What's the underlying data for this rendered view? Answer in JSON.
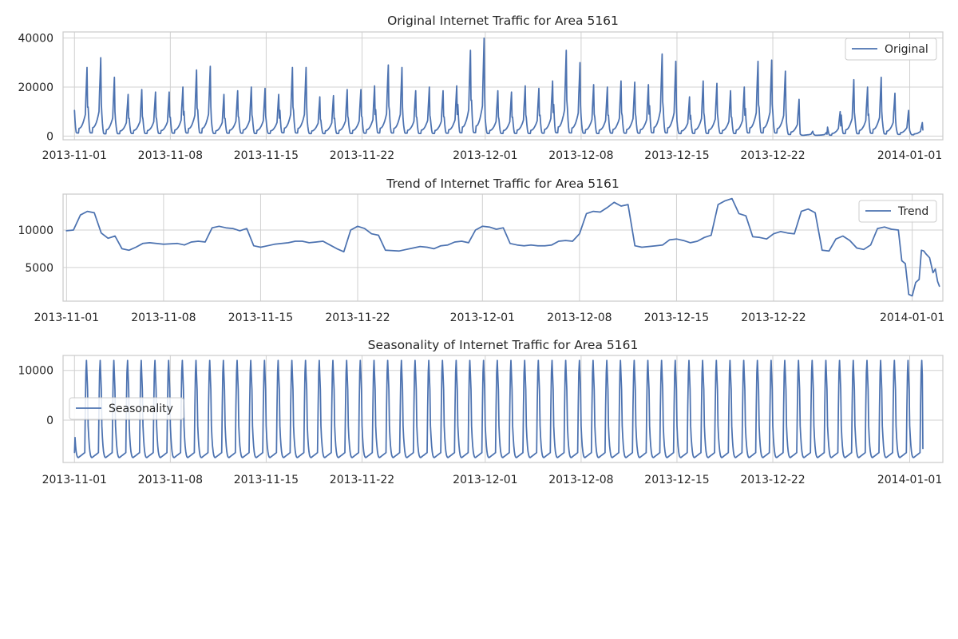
{
  "chart_data": [
    {
      "type": "line",
      "title": "Original Internet Traffic for Area 5161",
      "xlabel": "",
      "ylabel": "",
      "x_start": "2013-11-01",
      "x_end": "2014-01-01",
      "xlim": [
        "2013-10-31",
        "2014-01-02"
      ],
      "ylim": [
        -1500,
        42500
      ],
      "yticks": [
        0,
        20000,
        40000
      ],
      "ytick_labels": [
        "0",
        "20000",
        "40000"
      ],
      "xticks": [
        "2013-11-01",
        "2013-11-08",
        "2013-11-15",
        "2013-11-22",
        "2013-12-01",
        "2013-12-08",
        "2013-12-15",
        "2013-12-22",
        "2014-01-01"
      ],
      "grid": true,
      "legend_position": "upper right",
      "series": [
        {
          "name": "Original",
          "sampling": "hourly",
          "daily_peaks": [
            28000,
            32000,
            24000,
            17000,
            19000,
            18000,
            18000,
            20000,
            27000,
            28500,
            17000,
            18500,
            20000,
            19500,
            17000,
            28000,
            28000,
            16000,
            16500,
            19000,
            19000,
            20500,
            29000,
            28000,
            18500,
            20000,
            18500,
            20500,
            35000,
            40000,
            18500,
            18000,
            20500,
            19500,
            22500,
            35000,
            30000,
            21000,
            20000,
            22500,
            22000,
            21000,
            33500,
            30500,
            16000,
            22500,
            21500,
            18500,
            20000,
            30500,
            31000,
            26500,
            15000,
            2000,
            1500,
            10000,
            23000,
            20000,
            24000,
            17500,
            10500,
            5500
          ],
          "daily_troughs": [
            1000,
            1000,
            700,
            800,
            900,
            900,
            900,
            1000,
            1000,
            1000,
            900,
            1000,
            1000,
            900,
            900,
            1100,
            1000,
            900,
            900,
            900,
            900,
            1000,
            1000,
            1000,
            1000,
            900,
            900,
            1000,
            1000,
            1000,
            900,
            900,
            900,
            900,
            1000,
            1000,
            1000,
            1000,
            900,
            1000,
            1000,
            1000,
            1000,
            1000,
            900,
            900,
            900,
            900,
            900,
            1000,
            1000,
            1000,
            500,
            300,
            300,
            300,
            800,
            800,
            900,
            700,
            600,
            500
          ]
        }
      ]
    },
    {
      "type": "line",
      "title": "Trend of Internet Traffic for Area 5161",
      "xlabel": "",
      "ylabel": "",
      "x_start": "2013-11-01",
      "x_end": "2014-01-01",
      "xlim": [
        "2013-10-31",
        "2014-01-02"
      ],
      "ylim": [
        500,
        14800
      ],
      "yticks": [
        5000,
        10000
      ],
      "ytick_labels": [
        "5000",
        "10000"
      ],
      "xticks": [
        "2013-11-01",
        "2013-11-08",
        "2013-11-15",
        "2013-11-22",
        "2013-12-01",
        "2013-12-08",
        "2013-12-15",
        "2013-12-22",
        "2014-01-01"
      ],
      "grid": true,
      "legend_position": "upper right",
      "series": [
        {
          "name": "Trend",
          "points": [
            [
              "2013-11-01",
              9900
            ],
            [
              "2013-11-01T12",
              10000
            ],
            [
              "2013-11-02",
              12000
            ],
            [
              "2013-11-02T12",
              12500
            ],
            [
              "2013-11-03",
              12300
            ],
            [
              "2013-11-03T12",
              9600
            ],
            [
              "2013-11-04",
              8900
            ],
            [
              "2013-11-04T12",
              9200
            ],
            [
              "2013-11-05",
              7500
            ],
            [
              "2013-11-05T12",
              7300
            ],
            [
              "2013-11-06",
              7700
            ],
            [
              "2013-11-06T12",
              8200
            ],
            [
              "2013-11-07",
              8300
            ],
            [
              "2013-11-08",
              8100
            ],
            [
              "2013-11-09",
              8200
            ],
            [
              "2013-11-09T12",
              8000
            ],
            [
              "2013-11-10",
              8400
            ],
            [
              "2013-11-10T12",
              8500
            ],
            [
              "2013-11-11",
              8400
            ],
            [
              "2013-11-11T12",
              10300
            ],
            [
              "2013-11-12",
              10500
            ],
            [
              "2013-11-12T12",
              10300
            ],
            [
              "2013-11-13",
              10200
            ],
            [
              "2013-11-13T12",
              9900
            ],
            [
              "2013-11-14",
              10200
            ],
            [
              "2013-11-14T12",
              7900
            ],
            [
              "2013-11-15",
              7700
            ],
            [
              "2013-11-15T12",
              7900
            ],
            [
              "2013-11-16",
              8100
            ],
            [
              "2013-11-17",
              8300
            ],
            [
              "2013-11-17T12",
              8500
            ],
            [
              "2013-11-18",
              8500
            ],
            [
              "2013-11-18T12",
              8300
            ],
            [
              "2013-11-19",
              8400
            ],
            [
              "2013-11-19T12",
              8500
            ],
            [
              "2013-11-20",
              8000
            ],
            [
              "2013-11-20T12",
              7500
            ],
            [
              "2013-11-21",
              7100
            ],
            [
              "2013-11-21T12",
              10000
            ],
            [
              "2013-11-22",
              10500
            ],
            [
              "2013-11-22T12",
              10200
            ],
            [
              "2013-11-23",
              9500
            ],
            [
              "2013-11-23T12",
              9300
            ],
            [
              "2013-11-24",
              7300
            ],
            [
              "2013-11-25",
              7200
            ],
            [
              "2013-11-25T12",
              7400
            ],
            [
              "2013-11-26",
              7600
            ],
            [
              "2013-11-26T12",
              7800
            ],
            [
              "2013-11-27",
              7700
            ],
            [
              "2013-11-27T12",
              7500
            ],
            [
              "2013-11-28",
              7900
            ],
            [
              "2013-11-28T12",
              8000
            ],
            [
              "2013-11-29",
              8400
            ],
            [
              "2013-11-29T12",
              8500
            ],
            [
              "2013-11-30",
              8300
            ],
            [
              "2013-11-30T12",
              10000
            ],
            [
              "2013-12-01",
              10500
            ],
            [
              "2013-12-01T12",
              10400
            ],
            [
              "2013-12-02",
              10100
            ],
            [
              "2013-12-02T12",
              10300
            ],
            [
              "2013-12-03",
              8200
            ],
            [
              "2013-12-03T12",
              8000
            ],
            [
              "2013-12-04",
              7900
            ],
            [
              "2013-12-04T12",
              8000
            ],
            [
              "2013-12-05",
              7900
            ],
            [
              "2013-12-05T12",
              7900
            ],
            [
              "2013-12-06",
              8000
            ],
            [
              "2013-12-06T12",
              8500
            ],
            [
              "2013-12-07",
              8600
            ],
            [
              "2013-12-07T12",
              8500
            ],
            [
              "2013-12-08",
              9500
            ],
            [
              "2013-12-08T12",
              12200
            ],
            [
              "2013-12-09",
              12500
            ],
            [
              "2013-12-09T12",
              12400
            ],
            [
              "2013-12-10",
              13000
            ],
            [
              "2013-12-10T12",
              13700
            ],
            [
              "2013-12-11",
              13200
            ],
            [
              "2013-12-11T12",
              13400
            ],
            [
              "2013-12-12",
              7900
            ],
            [
              "2013-12-12T12",
              7700
            ],
            [
              "2013-12-13",
              7800
            ],
            [
              "2013-12-13T12",
              7900
            ],
            [
              "2013-12-14",
              8000
            ],
            [
              "2013-12-14T12",
              8700
            ],
            [
              "2013-12-15",
              8800
            ],
            [
              "2013-12-15T12",
              8600
            ],
            [
              "2013-12-16",
              8300
            ],
            [
              "2013-12-16T12",
              8500
            ],
            [
              "2013-12-17",
              9000
            ],
            [
              "2013-12-17T12",
              9300
            ],
            [
              "2013-12-18",
              13400
            ],
            [
              "2013-12-18T12",
              13900
            ],
            [
              "2013-12-19",
              14200
            ],
            [
              "2013-12-19T12",
              12200
            ],
            [
              "2013-12-20",
              11900
            ],
            [
              "2013-12-20T12",
              9100
            ],
            [
              "2013-12-21",
              9000
            ],
            [
              "2013-12-21T12",
              8800
            ],
            [
              "2013-12-22",
              9500
            ],
            [
              "2013-12-22T12",
              9800
            ],
            [
              "2013-12-23",
              9600
            ],
            [
              "2013-12-23T12",
              9500
            ],
            [
              "2013-12-24",
              12500
            ],
            [
              "2013-12-24T12",
              12800
            ],
            [
              "2013-12-25",
              12300
            ],
            [
              "2013-12-25T12",
              7300
            ],
            [
              "2013-12-26",
              7200
            ],
            [
              "2013-12-26T12",
              8800
            ],
            [
              "2013-12-27",
              9200
            ],
            [
              "2013-12-27T12",
              8600
            ],
            [
              "2013-12-28",
              7600
            ],
            [
              "2013-12-28T12",
              7400
            ],
            [
              "2013-12-29",
              8000
            ],
            [
              "2013-12-29T12",
              10200
            ],
            [
              "2013-12-30",
              10400
            ],
            [
              "2013-12-30T12",
              10100
            ],
            [
              "2013-12-31",
              10000
            ],
            [
              "2013-12-31T06",
              5900
            ],
            [
              "2013-12-31T12",
              5500
            ],
            [
              "2013-12-31T18",
              1400
            ],
            [
              "2014-01-01",
              1200
            ],
            [
              "2014-01-01T06",
              3000
            ],
            [
              "2014-01-01T12",
              3400
            ],
            [
              "2014-01-01T16",
              7300
            ],
            [
              "2014-01-01T20",
              7200
            ],
            [
              "2014-01-02",
              6800
            ],
            [
              "2014-01-02T06",
              6300
            ],
            [
              "2014-01-02T12",
              4300
            ],
            [
              "2014-01-02T16",
              4800
            ],
            [
              "2014-01-02T20",
              3100
            ],
            [
              "2014-01-02T23",
              2500
            ]
          ]
        }
      ]
    },
    {
      "type": "line",
      "title": "Seasonality of Internet Traffic for Area 5161",
      "xlabel": "",
      "ylabel": "",
      "x_start": "2013-11-01",
      "x_end": "2014-01-01",
      "xlim": [
        "2013-10-31",
        "2014-01-02"
      ],
      "ylim": [
        -8500,
        13000
      ],
      "yticks": [
        0,
        10000
      ],
      "ytick_labels": [
        "0",
        "10000"
      ],
      "xticks": [
        "2013-11-01",
        "2013-11-08",
        "2013-11-15",
        "2013-11-22",
        "2013-12-01",
        "2013-12-08",
        "2013-12-15",
        "2013-12-22",
        "2014-01-01"
      ],
      "grid": true,
      "legend_position": "center left",
      "series": [
        {
          "name": "Seasonality",
          "period": "daily",
          "max": 12000,
          "min": -7500,
          "start_value": -6500,
          "end_value": -5700
        }
      ]
    }
  ]
}
